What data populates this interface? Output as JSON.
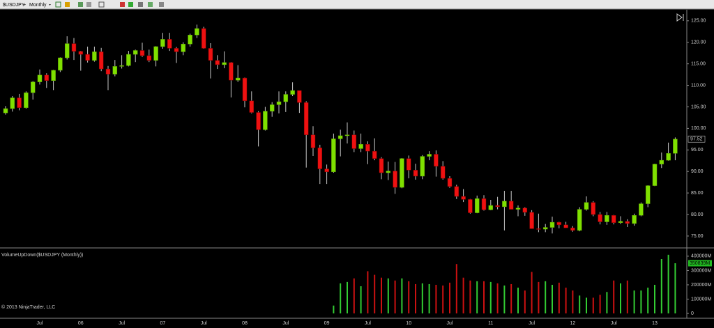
{
  "toolbar": {
    "symbol": "$USDJPY",
    "interval": "Monthly"
  },
  "footer": "© 2013 NinjaTrader, LLC",
  "chart_data": [
    {
      "type": "candlestick",
      "categories": [
        null,
        null,
        null,
        null,
        null,
        "Jul",
        null,
        null,
        null,
        null,
        null,
        "06",
        null,
        null,
        null,
        null,
        null,
        "Jul",
        null,
        null,
        null,
        null,
        null,
        "07",
        null,
        null,
        null,
        null,
        null,
        "Jul",
        null,
        null,
        null,
        null,
        null,
        "08",
        null,
        null,
        null,
        null,
        null,
        "Jul",
        null,
        null,
        null,
        null,
        null,
        "09",
        null,
        null,
        null,
        null,
        null,
        "Jul",
        null,
        null,
        null,
        null,
        null,
        "10",
        null,
        null,
        null,
        null,
        null,
        "Jul",
        null,
        null,
        null,
        null,
        null,
        "11",
        null,
        null,
        null,
        null,
        null,
        "Jul",
        null,
        null,
        null,
        null,
        null,
        "12",
        null,
        null,
        null,
        null,
        null,
        "Jul",
        null,
        null,
        null,
        null,
        null,
        "13",
        null,
        null,
        null
      ],
      "open": [
        103.6,
        104.6,
        107.1,
        104.8,
        108.3,
        110.8,
        112.4,
        111.1,
        113.5,
        116.4,
        119.7,
        117.9,
        117.2,
        115.8,
        117.8,
        113.8,
        112.6,
        114.4,
        114.6,
        117.2,
        118.1,
        116.9,
        115.8,
        119.0,
        120.7,
        118.6,
        117.8,
        119.6,
        121.7,
        123.2,
        118.6,
        115.8,
        114.8,
        115.3,
        111.2,
        111.7,
        106.4,
        103.7,
        99.7,
        104.0,
        105.5,
        106.2,
        107.9,
        108.8,
        106.0,
        98.5,
        95.5,
        90.6,
        89.9,
        97.6,
        98.3,
        98.5,
        95.3,
        96.3,
        94.7,
        93.0,
        89.7,
        90.1,
        86.3,
        93.0,
        90.3,
        88.9,
        93.5,
        94.0,
        91.2,
        88.4,
        86.5,
        84.2,
        83.5,
        80.4,
        83.7,
        81.1,
        82.1,
        81.8,
        83.1,
        81.2,
        81.5,
        80.5,
        76.7,
        76.6,
        77.0,
        78.2,
        77.6,
        76.9,
        76.3,
        81.2,
        82.8,
        80.0,
        78.3,
        79.8,
        78.1,
        78.4,
        77.9,
        79.8,
        82.5,
        86.7,
        91.7,
        92.6,
        94.2
      ],
      "high": [
        105.2,
        107.5,
        108.0,
        108.6,
        111.0,
        113.7,
        112.8,
        113.6,
        116.5,
        121.4,
        121.0,
        118.0,
        119.0,
        119.0,
        118.7,
        114.5,
        115.9,
        117.0,
        118.0,
        118.3,
        119.9,
        118.3,
        119.1,
        122.2,
        122.2,
        118.9,
        120.0,
        122.0,
        124.1,
        123.6,
        119.8,
        117.0,
        117.9,
        115.4,
        114.7,
        111.8,
        108.6,
        104.0,
        105.0,
        106.1,
        108.6,
        108.6,
        110.7,
        108.8,
        106.3,
        100.5,
        96.2,
        91.6,
        98.8,
        99.7,
        101.4,
        99.5,
        98.8,
        97.0,
        97.7,
        93.3,
        92.3,
        92.2,
        93.1,
        93.7,
        91.8,
        93.8,
        94.7,
        94.9,
        92.4,
        88.9,
        86.9,
        85.9,
        83.6,
        84.4,
        84.5,
        83.4,
        84.1,
        85.5,
        85.5,
        82.1,
        81.7,
        81.0,
        80.2,
        77.8,
        79.5,
        78.3,
        78.3,
        77.3,
        81.7,
        84.2,
        83.1,
        80.6,
        80.6,
        79.9,
        79.6,
        78.9,
        80.2,
        82.8,
        86.8,
        91.8,
        94.4,
        96.7,
        97.9
      ],
      "low": [
        103.2,
        103.9,
        104.2,
        104.6,
        106.7,
        110.2,
        109.4,
        108.9,
        113.1,
        116.0,
        115.9,
        113.4,
        115.3,
        115.5,
        113.3,
        108.9,
        112.1,
        113.9,
        114.4,
        115.4,
        116.6,
        115.4,
        114.4,
        118.5,
        118.0,
        115.2,
        117.0,
        119.0,
        121.0,
        118.5,
        111.6,
        113.8,
        114.0,
        107.2,
        110.8,
        104.9,
        103.5,
        95.8,
        99.5,
        102.7,
        103.5,
        103.8,
        107.5,
        103.6,
        90.9,
        93.6,
        87.1,
        87.1,
        89.7,
        93.5,
        96.5,
        94.5,
        94.5,
        91.7,
        92.6,
        88.2,
        88.0,
        84.8,
        86.1,
        88.4,
        88.1,
        88.2,
        92.6,
        88.8,
        88.1,
        86.2,
        83.6,
        82.9,
        80.2,
        80.3,
        80.9,
        81.0,
        81.2,
        76.3,
        81.3,
        79.6,
        79.7,
        76.7,
        75.9,
        75.9,
        75.6,
        76.8,
        76.9,
        76.0,
        76.1,
        80.9,
        79.6,
        77.7,
        77.6,
        77.7,
        77.8,
        77.1,
        77.4,
        79.6,
        81.7,
        86.6,
        90.8,
        92.5,
        92.6
      ],
      "close": [
        104.6,
        107.1,
        104.8,
        108.3,
        110.8,
        112.4,
        111.1,
        113.5,
        116.4,
        119.7,
        117.9,
        117.2,
        115.8,
        117.8,
        113.8,
        112.6,
        114.4,
        114.6,
        117.2,
        118.1,
        116.9,
        115.8,
        119.0,
        120.7,
        118.6,
        117.8,
        119.6,
        121.7,
        123.2,
        118.6,
        115.8,
        114.8,
        115.3,
        111.2,
        111.7,
        106.4,
        103.7,
        99.7,
        104.0,
        105.5,
        106.2,
        107.9,
        108.8,
        106.0,
        98.5,
        95.5,
        90.6,
        89.9,
        97.6,
        98.3,
        98.5,
        95.3,
        96.3,
        94.7,
        93.0,
        89.7,
        90.1,
        86.3,
        93.0,
        90.3,
        88.9,
        93.5,
        94.0,
        91.2,
        88.4,
        86.5,
        84.2,
        83.5,
        80.4,
        83.7,
        81.1,
        82.1,
        81.8,
        83.1,
        81.2,
        81.5,
        80.5,
        76.7,
        76.6,
        77.0,
        78.2,
        77.6,
        76.9,
        76.3,
        81.2,
        82.8,
        80.0,
        78.3,
        79.8,
        78.1,
        78.4,
        77.9,
        79.8,
        82.5,
        86.7,
        91.7,
        92.6,
        94.2,
        97.52
      ],
      "up_color": "#7fe000",
      "down_color": "#ee1111",
      "ylim": [
        72.4,
        127.4
      ],
      "yticks": [
        {
          "value": 75,
          "label": "75.00"
        },
        {
          "value": 80,
          "label": "80.00"
        },
        {
          "value": 85,
          "label": "85.00"
        },
        {
          "value": 90,
          "label": "90.00"
        },
        {
          "value": 95,
          "label": "95.00"
        },
        {
          "value": 100,
          "label": "100.00"
        },
        {
          "value": 105,
          "label": "105.00"
        },
        {
          "value": 110,
          "label": "110.00"
        },
        {
          "value": 115,
          "label": "115.00"
        },
        {
          "value": 120,
          "label": "120.00"
        },
        {
          "value": 125,
          "label": "125.00"
        }
      ]
    },
    {
      "type": "bar",
      "title": "VolumeUpDown($USDJPY (Monthly))",
      "values": [
        null,
        null,
        null,
        null,
        null,
        null,
        null,
        null,
        null,
        null,
        null,
        null,
        null,
        null,
        null,
        null,
        null,
        null,
        null,
        null,
        null,
        null,
        null,
        null,
        null,
        null,
        null,
        null,
        null,
        null,
        null,
        null,
        null,
        null,
        null,
        null,
        null,
        null,
        null,
        null,
        null,
        null,
        null,
        null,
        null,
        null,
        null,
        null,
        55000,
        210000,
        220000,
        245000,
        190000,
        295000,
        270000,
        250000,
        245000,
        230000,
        245000,
        225000,
        205000,
        210000,
        205000,
        200000,
        195000,
        215000,
        345000,
        250000,
        230000,
        225000,
        225000,
        220000,
        210000,
        195000,
        205000,
        180000,
        160000,
        290000,
        220000,
        225000,
        200000,
        215000,
        180000,
        160000,
        125000,
        110000,
        110000,
        130000,
        150000,
        230000,
        210000,
        230000,
        160000,
        160000,
        180000,
        200000,
        380000,
        410000,
        350839
      ],
      "last_value_label": "350839M",
      "up_color": "#33cc33",
      "down_color": "#cc1111",
      "ylim": [
        -24000,
        453000
      ],
      "yticks": [
        {
          "value": 0,
          "label": "0"
        },
        {
          "value": 100000,
          "label": "100000M"
        },
        {
          "value": 200000,
          "label": "200000M"
        },
        {
          "value": 300000,
          "label": "300000M"
        },
        {
          "value": 400000,
          "label": "400000M"
        }
      ]
    }
  ]
}
